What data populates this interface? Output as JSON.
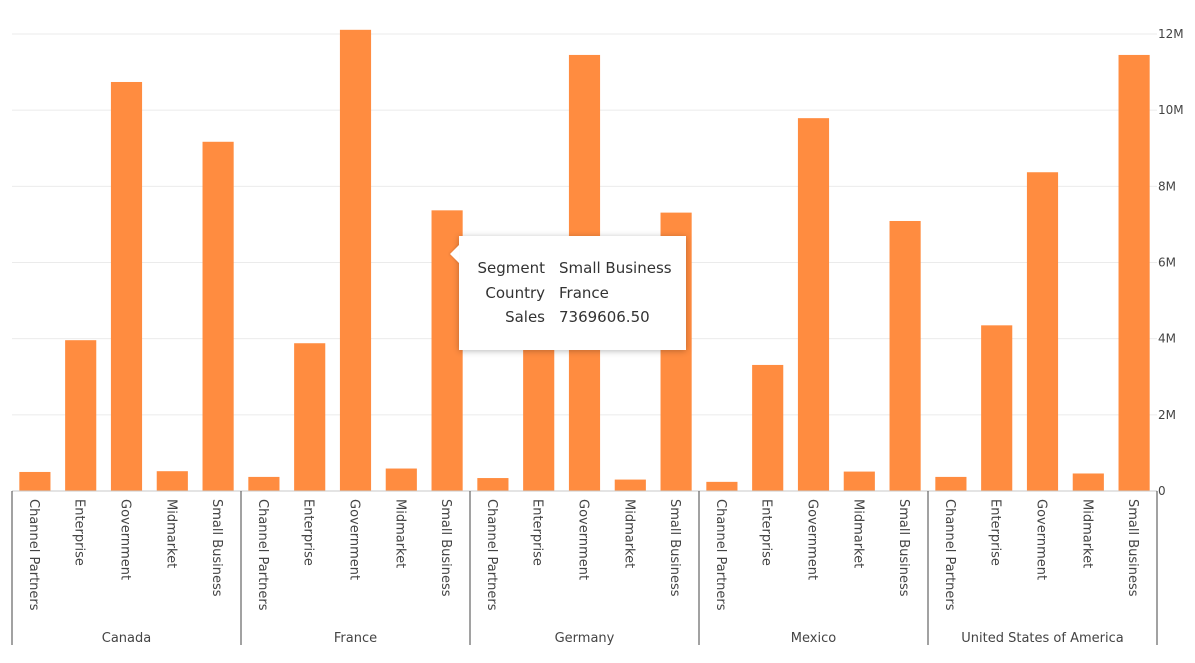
{
  "chart_data": {
    "type": "bar",
    "color": "#ff8c40",
    "grid": true,
    "y_axis_side": "right",
    "ylim": [
      0,
      12000000
    ],
    "yticks": [
      0,
      2000000,
      4000000,
      6000000,
      8000000,
      10000000,
      12000000
    ],
    "ytick_labels": [
      "0",
      "2M",
      "4M",
      "6M",
      "8M",
      "10M",
      "12M"
    ],
    "groups": [
      {
        "name": "Canada",
        "categories": [
          "Channel Partners",
          "Enterprise",
          "Government",
          "Midmarket",
          "Small Business"
        ],
        "values": [
          500000,
          3960000,
          10740000,
          520000,
          9170000
        ]
      },
      {
        "name": "France",
        "categories": [
          "Channel Partners",
          "Enterprise",
          "Government",
          "Midmarket",
          "Small Business"
        ],
        "values": [
          370000,
          3880000,
          12110000,
          590000,
          7369606.5
        ]
      },
      {
        "name": "Germany",
        "categories": [
          "Channel Partners",
          "Enterprise",
          "Government",
          "Midmarket",
          "Small Business"
        ],
        "values": [
          340000,
          3800000,
          11450000,
          300000,
          7310000
        ]
      },
      {
        "name": "Mexico",
        "categories": [
          "Channel Partners",
          "Enterprise",
          "Government",
          "Midmarket",
          "Small Business"
        ],
        "values": [
          240000,
          3310000,
          9790000,
          510000,
          7090000
        ]
      },
      {
        "name": "United States of America",
        "categories": [
          "Channel Partners",
          "Enterprise",
          "Government",
          "Midmarket",
          "Small Business"
        ],
        "values": [
          370000,
          4350000,
          8370000,
          460000,
          11450000
        ]
      }
    ]
  },
  "tooltip": {
    "rows": [
      {
        "key": "Segment",
        "value": "Small Business"
      },
      {
        "key": "Country",
        "value": "France"
      },
      {
        "key": "Sales",
        "value": "7369606.50"
      }
    ]
  }
}
